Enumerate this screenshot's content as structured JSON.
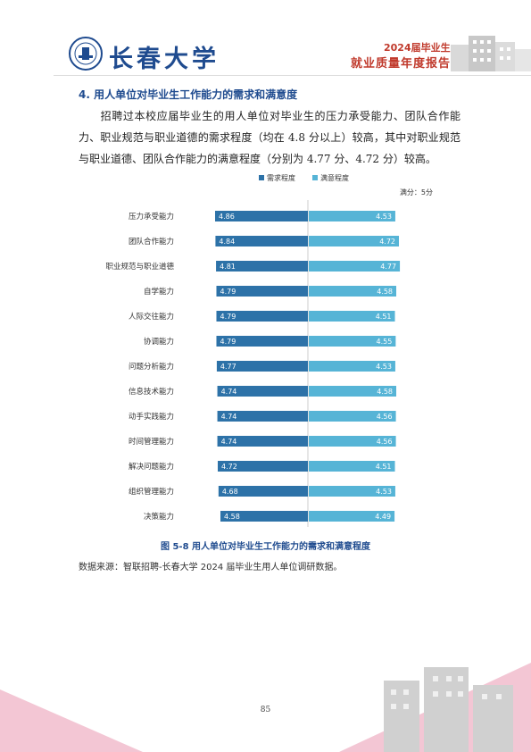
{
  "header": {
    "university_name": "长春大学",
    "report_year": "2024届毕业生",
    "report_title": "就业质量年度报告"
  },
  "section": {
    "heading": "4.  用人单位对毕业生工作能力的需求和满意度",
    "paragraph": "招聘过本校应届毕业生的用人单位对毕业生的压力承受能力、团队合作能力、职业规范与职业道德的需求程度（均在 4.8 分以上）较高，其中对职业规范与职业道德、团队合作能力的满意程度（分别为 4.77 分、4.72 分）较高。"
  },
  "chart_data": {
    "type": "bar",
    "orientation": "horizontal-diverging",
    "series": [
      {
        "name": "需求程度",
        "color": "#2d72a8",
        "values": [
          4.86,
          4.84,
          4.81,
          4.79,
          4.79,
          4.79,
          4.77,
          4.74,
          4.74,
          4.74,
          4.72,
          4.68,
          4.58
        ]
      },
      {
        "name": "满意程度",
        "color": "#56b4d6",
        "values": [
          4.53,
          4.72,
          4.77,
          4.58,
          4.51,
          4.55,
          4.53,
          4.58,
          4.56,
          4.56,
          4.51,
          4.53,
          4.49
        ]
      }
    ],
    "categories": [
      "压力承受能力",
      "团队合作能力",
      "职业规范与职业道德",
      "自学能力",
      "人际交往能力",
      "协调能力",
      "问题分析能力",
      "信息技术能力",
      "动手实践能力",
      "时间管理能力",
      "解决问题能力",
      "组织管理能力",
      "决策能力"
    ],
    "unit_note": "满分：5分",
    "legend": "top-center"
  },
  "caption": "图 5-8    用人单位对毕业生工作能力的需求和满意程度",
  "source": "数据来源：智联招聘-长春大学 2024 届毕业生用人单位调研数据。",
  "page_number": "85"
}
